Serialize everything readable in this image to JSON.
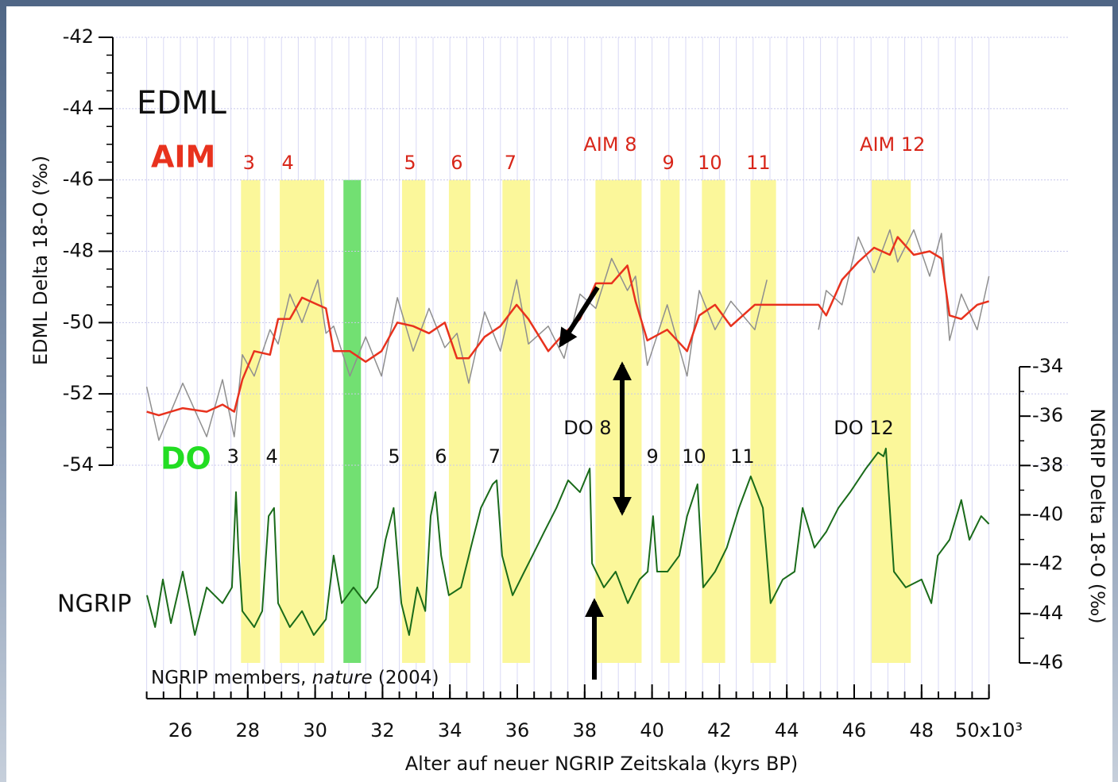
{
  "chart_data": {
    "type": "line",
    "labels": {
      "edml": "EDML",
      "aim": "AIM",
      "do": "DO",
      "ngrip": "NGRIP"
    },
    "source": [
      "NGRIP members, ",
      "nature",
      " (2004)"
    ],
    "xlabel": "Alter auf neuer NGRIP Zeitskala (kyrs BP)",
    "ylabel": "EDML  Delta 18-O (‰)",
    "y2label": "NGRIP  Delta 18-O (‰)",
    "xlim": [
      25,
      50
    ],
    "xticks": [
      26,
      28,
      30,
      32,
      34,
      36,
      38,
      40,
      42,
      44,
      46,
      48,
      {
        "value": 50,
        "label": "50x10³"
      }
    ],
    "xminor": 0.5,
    "ylim": [
      -54,
      -42
    ],
    "yticks": [
      -42,
      -44,
      -46,
      -48,
      -50,
      -52,
      -54
    ],
    "yminor": 0.5,
    "y2lim": [
      -46,
      -34
    ],
    "y2ticks": [
      -34,
      -36,
      -38,
      -40,
      -42,
      -44,
      -46
    ],
    "y2minor": 1,
    "grid": true,
    "bands": [
      {
        "start": 27.8,
        "end": 28.37,
        "color": "#fbf79a",
        "aim": "3",
        "do": "3"
      },
      {
        "start": 28.95,
        "end": 30.27,
        "color": "#fbf79a",
        "aim": "4",
        "do": "4"
      },
      {
        "start": 30.84,
        "end": 31.36,
        "color": "#72e072"
      },
      {
        "start": 32.58,
        "end": 33.27,
        "color": "#fbf79a",
        "aim": "5",
        "do": "5"
      },
      {
        "start": 33.97,
        "end": 34.61,
        "color": "#fbf79a",
        "aim": "6",
        "do": "6"
      },
      {
        "start": 35.56,
        "end": 36.38,
        "color": "#fbf79a",
        "aim": "7",
        "do": "7"
      },
      {
        "start": 38.32,
        "end": 39.69,
        "color": "#fbf79a",
        "aim": "AIM 8",
        "do": "DO 8"
      },
      {
        "start": 40.25,
        "end": 40.82,
        "color": "#fbf79a",
        "aim": "9",
        "do": "9"
      },
      {
        "start": 41.48,
        "end": 42.17,
        "color": "#fbf79a",
        "aim": "10",
        "do": "10"
      },
      {
        "start": 42.92,
        "end": 43.68,
        "color": "#fbf79a",
        "aim": "11",
        "do": "11"
      },
      {
        "start": 46.52,
        "end": 47.68,
        "color": "#fbf79a",
        "aim": "AIM 12",
        "do": "DO 12"
      }
    ],
    "series": [
      {
        "color": "#8f8f8f",
        "axis": "y",
        "x": [
          25.0,
          25.36,
          26.07,
          26.78,
          27.25,
          27.6,
          27.84,
          28.19,
          28.66,
          28.9,
          29.25,
          29.61,
          30.08,
          30.32,
          30.55,
          31.03,
          31.5,
          31.97,
          32.44,
          32.91,
          33.38,
          33.85,
          34.21,
          34.56,
          35.03,
          35.5,
          35.98,
          36.33,
          36.92,
          37.39,
          37.86,
          38.33,
          38.8,
          39.27,
          39.51,
          39.86,
          40.45,
          41.04,
          41.4,
          41.87,
          42.34,
          43.05,
          43.41,
          44.2,
          44.94,
          45.17,
          45.64,
          46.12,
          46.59,
          47.06,
          47.29,
          47.77,
          48.24,
          48.59,
          48.83,
          49.18,
          49.65,
          50.0
        ],
        "values": [
          -51.8,
          -53.3,
          -51.7,
          -53.2,
          -51.6,
          -53.2,
          -50.9,
          -51.5,
          -50.2,
          -50.6,
          -49.2,
          -50.0,
          -48.8,
          -50.3,
          -50.1,
          -51.5,
          -50.4,
          -51.5,
          -49.3,
          -50.8,
          -49.6,
          -50.7,
          -50.3,
          -51.7,
          -49.7,
          -50.8,
          -48.8,
          -50.6,
          -50.1,
          -51.0,
          -49.2,
          -49.6,
          -48.2,
          -49.1,
          -48.7,
          -51.2,
          -49.5,
          -51.5,
          -49.1,
          -50.2,
          -49.4,
          -50.2,
          -48.8,
          null,
          -50.2,
          -49.1,
          -49.5,
          -47.6,
          -48.6,
          -47.4,
          -48.3,
          -47.4,
          -48.7,
          -47.5,
          -50.5,
          -49.2,
          -50.2,
          -48.7
        ]
      },
      {
        "color": "#e8321e",
        "axis": "y",
        "x": [
          25.0,
          25.36,
          26.07,
          26.78,
          27.25,
          27.6,
          27.84,
          28.19,
          28.66,
          28.9,
          29.25,
          29.61,
          30.08,
          30.32,
          30.55,
          31.03,
          31.5,
          31.97,
          32.44,
          32.91,
          33.38,
          33.85,
          34.21,
          34.56,
          35.03,
          35.5,
          35.98,
          36.33,
          36.92,
          37.39,
          37.86,
          38.33,
          38.8,
          39.27,
          39.51,
          39.86,
          40.45,
          41.04,
          41.4,
          41.87,
          42.34,
          43.05,
          43.41,
          44.94,
          45.17,
          45.64,
          46.12,
          46.59,
          47.06,
          47.29,
          47.77,
          48.24,
          48.59,
          48.83,
          49.18,
          49.65,
          50.0
        ],
        "values": [
          -52.5,
          -52.6,
          -52.4,
          -52.5,
          -52.3,
          -52.5,
          -51.6,
          -50.8,
          -50.9,
          -49.9,
          -49.9,
          -49.3,
          -49.5,
          -49.6,
          -50.8,
          -50.8,
          -51.1,
          -50.8,
          -50.0,
          -50.1,
          -50.3,
          -50.0,
          -51.0,
          -51.0,
          -50.4,
          -50.1,
          -49.5,
          -49.9,
          -50.8,
          -50.3,
          -49.9,
          -48.9,
          -48.9,
          -48.4,
          -49.4,
          -50.5,
          -50.2,
          -50.8,
          -49.8,
          -49.5,
          -50.1,
          -49.5,
          -49.5,
          -49.5,
          -49.8,
          -48.8,
          -48.3,
          -47.9,
          -48.1,
          -47.6,
          -48.1,
          -48.0,
          -48.2,
          -49.8,
          -49.9,
          -49.5,
          -49.4
        ]
      },
      {
        "color": "#1a6b1a",
        "axis": "y2",
        "x": [
          25.01,
          25.25,
          25.48,
          25.72,
          26.07,
          26.43,
          26.78,
          27.25,
          27.53,
          27.65,
          27.72,
          27.84,
          28.19,
          28.43,
          28.62,
          28.78,
          28.9,
          29.25,
          29.61,
          29.96,
          30.32,
          30.55,
          30.79,
          31.14,
          31.5,
          31.85,
          32.09,
          32.33,
          32.56,
          32.79,
          33.03,
          33.27,
          33.43,
          33.57,
          33.74,
          33.97,
          34.33,
          34.68,
          34.92,
          35.27,
          35.39,
          35.55,
          35.86,
          36.21,
          36.45,
          36.8,
          37.16,
          37.51,
          37.86,
          38.15,
          38.22,
          38.57,
          38.92,
          39.28,
          39.63,
          39.87,
          40.03,
          40.15,
          40.46,
          40.81,
          41.04,
          41.35,
          41.52,
          41.87,
          42.22,
          42.58,
          42.93,
          43.29,
          43.52,
          43.88,
          44.23,
          44.47,
          44.82,
          45.17,
          45.53,
          45.88,
          46.35,
          46.71,
          46.87,
          46.94,
          47.18,
          47.53,
          48.0,
          48.29,
          48.48,
          48.83,
          49.18,
          49.42,
          49.77,
          50.0
        ],
        "values": [
          -43.26,
          -44.55,
          -42.62,
          -44.39,
          -42.3,
          -44.87,
          -42.94,
          -43.58,
          -42.94,
          -39.08,
          -41.33,
          -43.9,
          -44.55,
          -43.9,
          -40.05,
          -39.72,
          -43.58,
          -44.55,
          -43.9,
          -44.87,
          -44.23,
          -41.65,
          -43.58,
          -42.94,
          -43.58,
          -42.94,
          -41.01,
          -39.72,
          -43.58,
          -44.87,
          -42.94,
          -43.9,
          -40.05,
          -39.08,
          -41.65,
          -43.26,
          -42.94,
          -41.01,
          -39.72,
          -38.76,
          -38.6,
          -41.65,
          -43.26,
          -42.3,
          -41.65,
          -40.69,
          -39.72,
          -38.6,
          -39.08,
          -38.12,
          -41.97,
          -42.94,
          -42.3,
          -43.58,
          -42.62,
          -42.3,
          -40.05,
          -42.3,
          -42.3,
          -41.65,
          -40.05,
          -38.76,
          -42.94,
          -42.3,
          -41.33,
          -39.72,
          -38.44,
          -39.72,
          -43.58,
          -42.62,
          -42.3,
          -39.72,
          -41.33,
          -40.69,
          -39.72,
          -39.08,
          -38.12,
          -37.47,
          -37.63,
          -37.31,
          -42.3,
          -42.94,
          -42.62,
          -43.58,
          -41.65,
          -41.01,
          -39.4,
          -41.01,
          -40.05,
          -40.37
        ]
      }
    ]
  }
}
